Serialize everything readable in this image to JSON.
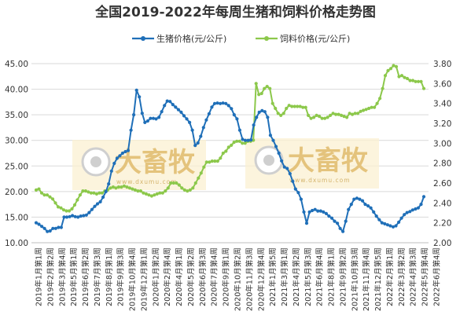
{
  "chart_data": {
    "type": "line",
    "title": "全国2019-2022年每周生猪和饲料价格走势图",
    "y_left": {
      "min": 10,
      "max": 45,
      "step": 5,
      "decimals": 2
    },
    "y_right": {
      "min": 2.0,
      "max": 3.8,
      "step": 0.2,
      "decimals": 2
    },
    "grid": true,
    "legend_position": "top",
    "watermark": {
      "text": "大畜牧",
      "url": "www.dxumu.com"
    },
    "x_labels": [
      "2019年1月第1周",
      "2019年2月第2周",
      "2019年3月第4周",
      "2019年5月第1周",
      "2019年6月第2周",
      "2019年7月第3周",
      "2019年8月第1周",
      "2019年9月第3周",
      "2019年10月第4周",
      "2019年12月第1周",
      "2020年1月第2周",
      "2020年2月第4周",
      "2020年4月第1周",
      "2020年5月第2周",
      "2020年6月第3周",
      "2020年7月第4周",
      "2020年9月第1周",
      "2020年10月第2周",
      "2020年11月第3周",
      "2020年12月第4周",
      "2021年1月第5周",
      "2021年3月第1周",
      "2021年4月第2周",
      "2021年5月第3周",
      "2021年6月第4周",
      "2021年8月第1周",
      "2021年9月第2周",
      "2021年10月第3周",
      "2021年11月第4周",
      "2021年12月第5周",
      "2022年2月第1周",
      "2022年3月第2周",
      "2022年4月第3周",
      "2022年5月第4周",
      "2022年6月第4周"
    ],
    "series": [
      {
        "name": "生猪价格(元/公斤)",
        "axis": "left",
        "color": "#1f6fb8",
        "values": [
          13.9,
          13.6,
          13.2,
          12.8,
          12.2,
          12.3,
          12.8,
          12.8,
          13.0,
          13.0,
          15.0,
          15.0,
          15.1,
          15.3,
          15.1,
          15.0,
          15.2,
          15.3,
          15.4,
          15.9,
          16.5,
          17.1,
          17.6,
          18.0,
          18.9,
          20.0,
          21.5,
          24.0,
          25.5,
          26.5,
          27.0,
          27.5,
          27.8,
          28.0,
          32.0,
          35.0,
          39.8,
          38.5,
          35.3,
          33.5,
          33.8,
          34.3,
          34.3,
          34.2,
          34.5,
          35.6,
          36.8,
          37.7,
          37.6,
          37.0,
          36.5,
          36.0,
          35.5,
          34.8,
          34.2,
          33.5,
          32.0,
          29.0,
          29.5,
          30.8,
          32.5,
          34.0,
          35.2,
          36.5,
          37.2,
          37.3,
          37.2,
          37.3,
          37.2,
          36.8,
          36.2,
          35.0,
          34.2,
          32.0,
          30.2,
          30.0,
          30.0,
          30.1,
          33.0,
          34.5,
          35.5,
          35.8,
          35.6,
          34.5,
          31.0,
          30.0,
          28.8,
          27.5,
          26.0,
          24.8,
          24.5,
          23.5,
          22.0,
          20.5,
          19.8,
          18.5,
          16.0,
          13.8,
          16.0,
          16.3,
          16.5,
          16.2,
          16.2,
          16.0,
          15.7,
          15.2,
          14.8,
          14.2,
          13.8,
          12.8,
          12.2,
          14.2,
          16.5,
          17.5,
          18.5,
          18.7,
          18.5,
          18.2,
          17.5,
          17.2,
          16.8,
          16.0,
          15.2,
          14.5,
          13.9,
          13.7,
          13.5,
          13.3,
          13.1,
          13.3,
          14.0,
          14.8,
          15.5,
          15.9,
          16.1,
          16.4,
          16.6,
          16.8,
          17.5,
          19.0
        ]
      },
      {
        "name": "饲料价格(元/公斤)",
        "axis": "right",
        "color": "#8cc84b",
        "values": [
          2.53,
          2.54,
          2.5,
          2.48,
          2.48,
          2.46,
          2.44,
          2.4,
          2.36,
          2.35,
          2.33,
          2.32,
          2.32,
          2.34,
          2.38,
          2.43,
          2.48,
          2.52,
          2.52,
          2.51,
          2.5,
          2.5,
          2.49,
          2.5,
          2.5,
          2.52,
          2.53,
          2.55,
          2.56,
          2.55,
          2.56,
          2.56,
          2.57,
          2.56,
          2.55,
          2.54,
          2.53,
          2.52,
          2.52,
          2.5,
          2.49,
          2.48,
          2.47,
          2.48,
          2.49,
          2.5,
          2.5,
          2.52,
          2.55,
          2.6,
          2.6,
          2.6,
          2.58,
          2.55,
          2.53,
          2.52,
          2.53,
          2.55,
          2.6,
          2.65,
          2.7,
          2.76,
          2.81,
          2.81,
          2.82,
          2.82,
          2.82,
          2.85,
          2.9,
          2.92,
          2.96,
          2.98,
          3.01,
          3.02,
          3.02,
          3.0,
          3.0,
          3.02,
          3.02,
          3.03,
          3.6,
          3.49,
          3.5,
          3.55,
          3.57,
          3.55,
          3.4,
          3.35,
          3.3,
          3.28,
          3.3,
          3.35,
          3.38,
          3.37,
          3.37,
          3.37,
          3.37,
          3.36,
          3.36,
          3.28,
          3.25,
          3.26,
          3.28,
          3.27,
          3.25,
          3.25,
          3.26,
          3.28,
          3.3,
          3.29,
          3.29,
          3.28,
          3.27,
          3.26,
          3.3,
          3.29,
          3.3,
          3.3,
          3.32,
          3.33,
          3.34,
          3.35,
          3.36,
          3.36,
          3.4,
          3.45,
          3.55,
          3.68,
          3.73,
          3.75,
          3.78,
          3.77,
          3.67,
          3.68,
          3.66,
          3.65,
          3.63,
          3.63,
          3.62,
          3.62,
          3.62,
          3.55
        ]
      }
    ]
  }
}
